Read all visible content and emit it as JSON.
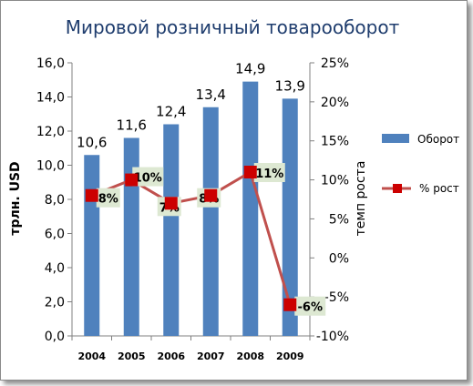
{
  "chart_data": {
    "type": "bar",
    "title": "Мировой розничный товарооборот",
    "categories": [
      "2004",
      "2005",
      "2006",
      "2007",
      "2008",
      "2009"
    ],
    "series": [
      {
        "name": "Оборот",
        "type": "bar",
        "axis": "left",
        "values": [
          10.6,
          11.6,
          12.4,
          13.4,
          14.9,
          13.9
        ],
        "labels": [
          "10,6",
          "11,6",
          "12,4",
          "13,4",
          "14,9",
          "13,9"
        ],
        "color": "#4f81bd"
      },
      {
        "name": "% рост",
        "type": "line",
        "axis": "right",
        "values": [
          8,
          10,
          7,
          8,
          11,
          -6
        ],
        "labels": [
          "8%",
          "10%",
          "7%",
          "8%",
          "11%",
          "-6%"
        ],
        "color": "#c0504d",
        "marker_color": "#cc0000"
      }
    ],
    "ylabel": "трлн. USD",
    "ylabel_right": "темп роста",
    "ylim": [
      0,
      16
    ],
    "ylim_right": [
      -10,
      25
    ],
    "yticks": [
      "0,0",
      "2,0",
      "4,0",
      "6,0",
      "8,0",
      "10,0",
      "12,0",
      "14,0",
      "16,0"
    ],
    "yticks_right": [
      "-10%",
      "-5%",
      "0%",
      "5%",
      "10%",
      "15%",
      "20%",
      "25%"
    ],
    "grid": false,
    "legend": "right"
  }
}
